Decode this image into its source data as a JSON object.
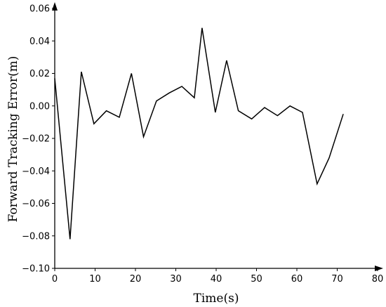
{
  "chart_data": {
    "type": "line",
    "xlabel": "Time(s)",
    "ylabel": "Forward Tracking Error(m)",
    "xlim": [
      0,
      80
    ],
    "ylim": [
      -0.1,
      0.06
    ],
    "x_ticks": [
      0,
      10,
      20,
      30,
      40,
      50,
      60,
      70,
      80
    ],
    "y_ticks": [
      -0.1,
      -0.08,
      -0.06,
      -0.04,
      -0.02,
      0.0,
      0.02,
      0.04,
      0.06
    ],
    "x_tick_labels": [
      "0",
      "10",
      "20",
      "30",
      "40",
      "50",
      "60",
      "70",
      "80"
    ],
    "y_tick_labels": [
      "-0.10",
      "-0.08",
      "-0.06",
      "-0.04",
      "-0.02",
      "0.00",
      "0.02",
      "0.04",
      "0.06"
    ],
    "grid": false,
    "series": [
      {
        "x": [
          0,
          3.8,
          6.6,
          9.7,
          12.8,
          16.0,
          19.0,
          22.0,
          25.2,
          28.4,
          31.5,
          34.6,
          36.5,
          39.8,
          42.6,
          45.5,
          48.8,
          52.0,
          55.2,
          58.3,
          61.4,
          65.0,
          68.0,
          71.5
        ],
        "y": [
          0.017,
          -0.082,
          0.021,
          -0.011,
          -0.003,
          -0.007,
          0.02,
          -0.019,
          0.003,
          0.008,
          0.012,
          0.005,
          0.048,
          -0.004,
          0.028,
          -0.003,
          -0.008,
          -0.001,
          -0.006,
          0.0,
          -0.004,
          -0.048,
          -0.032,
          -0.005
        ]
      }
    ]
  }
}
